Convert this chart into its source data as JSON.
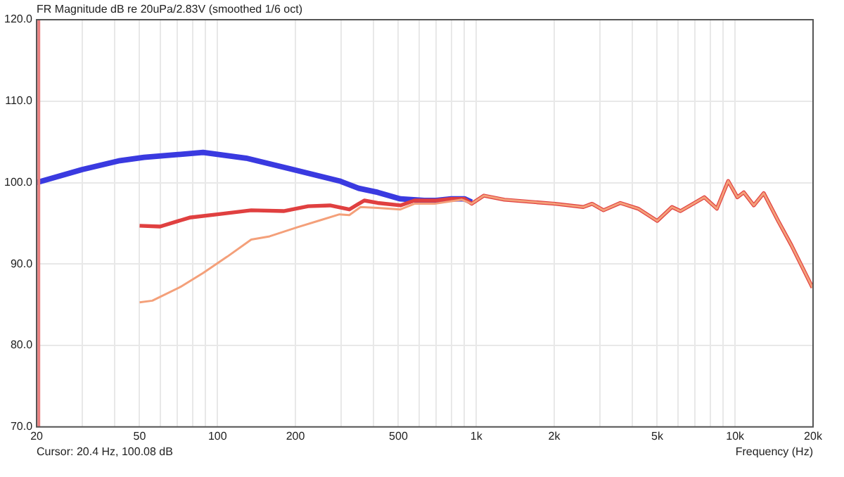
{
  "chart_data": {
    "type": "line",
    "title": "FR Magnitude dB re 20uPa/2.83V (smoothed 1/6 oct)",
    "xlabel": "Frequency (Hz)",
    "annotations": [
      "Cursor: 20.4 Hz, 100.08 dB"
    ],
    "log": "x",
    "grid": true,
    "legend": false,
    "marker": "none",
    "line_style": "solid",
    "xlim": [
      20,
      20000
    ],
    "xticks": [
      20,
      {
        "value": 30,
        "label": null
      },
      {
        "value": 40,
        "label": null
      },
      50,
      {
        "value": 60,
        "label": null
      },
      {
        "value": 70,
        "label": null
      },
      {
        "value": 80,
        "label": null
      },
      {
        "value": 90,
        "label": null
      },
      100,
      200,
      {
        "value": 300,
        "label": null
      },
      {
        "value": 400,
        "label": null
      },
      500,
      {
        "value": 600,
        "label": null
      },
      {
        "value": 700,
        "label": null
      },
      {
        "value": 800,
        "label": null
      },
      {
        "value": 900,
        "label": null
      },
      {
        "value": 1000,
        "label": "1k"
      },
      {
        "value": 2000,
        "label": "2k"
      },
      {
        "value": 3000,
        "label": null
      },
      {
        "value": 4000,
        "label": null
      },
      {
        "value": 5000,
        "label": "5k"
      },
      {
        "value": 6000,
        "label": null
      },
      {
        "value": 7000,
        "label": null
      },
      {
        "value": 8000,
        "label": null
      },
      {
        "value": 9000,
        "label": null
      },
      {
        "value": 10000,
        "label": "10k"
      },
      {
        "value": 20000,
        "label": "20k"
      }
    ],
    "ylim": [
      70,
      120
    ],
    "yticks": [
      {
        "value": 70,
        "label": "70.0"
      },
      {
        "value": 80,
        "label": "80.0"
      },
      {
        "value": 90,
        "label": "90.0"
      },
      {
        "value": 100,
        "label": "100.0"
      },
      {
        "value": 110,
        "label": "110.0"
      },
      {
        "value": 120,
        "label": "120.0"
      }
    ],
    "ref_lines": [
      {
        "axis": "x",
        "value": 20.4,
        "color": "#e88080"
      }
    ],
    "series": [
      {
        "color": "#3a3ae0",
        "x": [
          20,
          30,
          42,
          52,
          88,
          129,
          196,
          296,
          351,
          416,
          509,
          629,
          700,
          800,
          900,
          960
        ],
        "values": [
          100.0,
          101.6,
          102.7,
          103.1,
          103.7,
          103.0,
          101.6,
          100.2,
          99.3,
          98.8,
          98.0,
          97.8,
          97.8,
          98.0,
          98.0,
          97.6
        ]
      },
      {
        "color": "#e04040",
        "x": [
          50,
          60,
          78,
          100,
          135,
          180,
          224,
          272,
          323,
          369,
          416,
          509,
          577,
          700,
          800,
          900,
          960,
          1070,
          1284,
          2013,
          2590,
          2800,
          3100,
          3600,
          4220,
          5000,
          5700,
          6150,
          7600,
          8500,
          9400,
          10200,
          10800,
          11800,
          12900,
          14600,
          16500,
          19900
        ],
        "values": [
          94.7,
          94.6,
          95.7,
          96.1,
          96.6,
          96.5,
          97.1,
          97.2,
          96.7,
          97.8,
          97.5,
          97.2,
          97.8,
          97.8,
          98.0,
          98.0,
          97.4,
          98.4,
          97.9,
          97.4,
          97.0,
          97.4,
          96.6,
          97.5,
          96.8,
          95.3,
          97.0,
          96.5,
          98.2,
          96.8,
          100.2,
          98.2,
          98.8,
          97.2,
          98.7,
          95.4,
          92.3,
          87.1
        ]
      },
      {
        "color": "#f4a07a",
        "x": [
          50,
          56,
          72,
          88,
          109,
          135,
          159,
          203,
          251,
          296,
          323,
          357,
          416,
          509,
          577,
          690,
          880,
          960,
          1070,
          1284,
          2013,
          2590,
          2800,
          3100,
          3600,
          4220,
          5000,
          5700,
          6150,
          7600,
          8500,
          9400,
          10200,
          10800,
          11800,
          12900,
          14600,
          16500,
          19900
        ],
        "values": [
          85.3,
          85.5,
          87.2,
          88.9,
          90.9,
          93.0,
          93.4,
          94.5,
          95.4,
          96.1,
          96.0,
          97.0,
          96.9,
          96.7,
          97.4,
          97.4,
          97.9,
          97.4,
          98.4,
          97.9,
          97.4,
          97.0,
          97.4,
          96.6,
          97.5,
          96.8,
          95.3,
          97.0,
          96.5,
          98.2,
          96.8,
          100.2,
          98.2,
          98.8,
          97.2,
          98.7,
          95.4,
          92.3,
          87.1
        ]
      }
    ]
  }
}
